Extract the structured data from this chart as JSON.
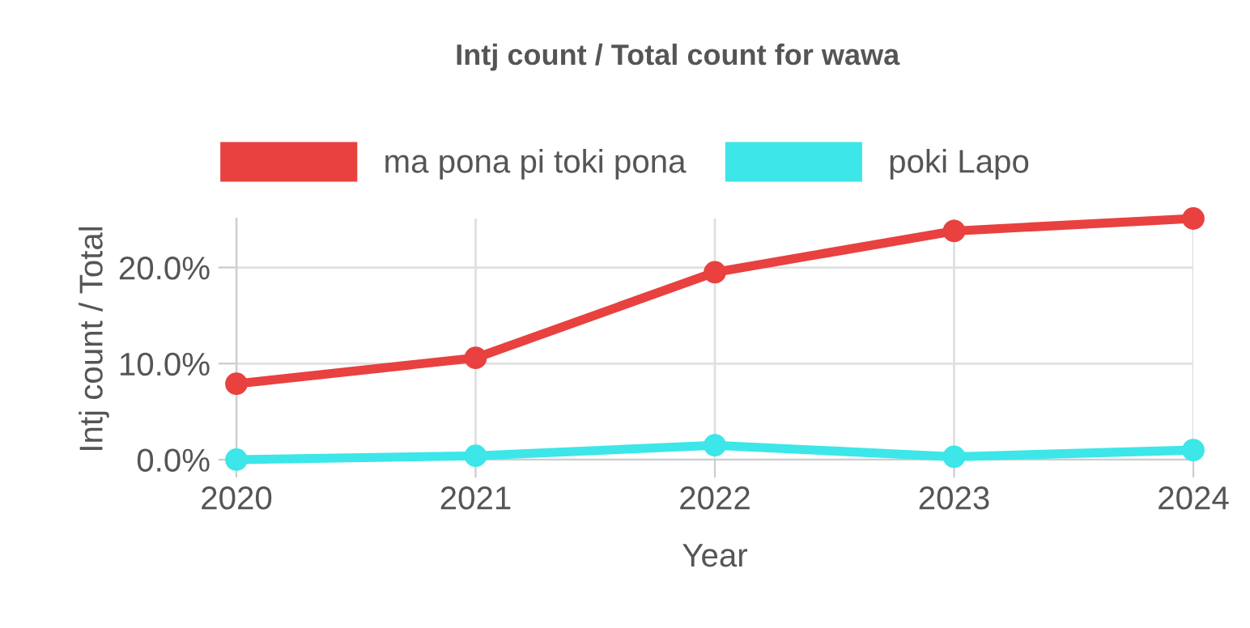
{
  "chart_data": {
    "type": "line",
    "title": "Intj count / Total count for wawa",
    "xlabel": "Year",
    "ylabel": "Intj count / Total",
    "categories": [
      "2020",
      "2021",
      "2022",
      "2023",
      "2024"
    ],
    "series": [
      {
        "name": "ma pona pi toki pona",
        "color": "#e8413f",
        "values": [
          7.9,
          10.6,
          19.5,
          23.8,
          25.1
        ]
      },
      {
        "name": "poki Lapo",
        "color": "#3de6e8",
        "values": [
          0.0,
          0.4,
          1.5,
          0.3,
          1.0
        ]
      }
    ],
    "ylim": [
      0,
      25.1
    ],
    "yticks": [
      {
        "value": 0,
        "label": "0.0%"
      },
      {
        "value": 10,
        "label": "10.0%"
      },
      {
        "value": 20,
        "label": "20.0%"
      }
    ],
    "grid": true,
    "legend": "top",
    "marker": "circle",
    "line_style": "solid"
  }
}
